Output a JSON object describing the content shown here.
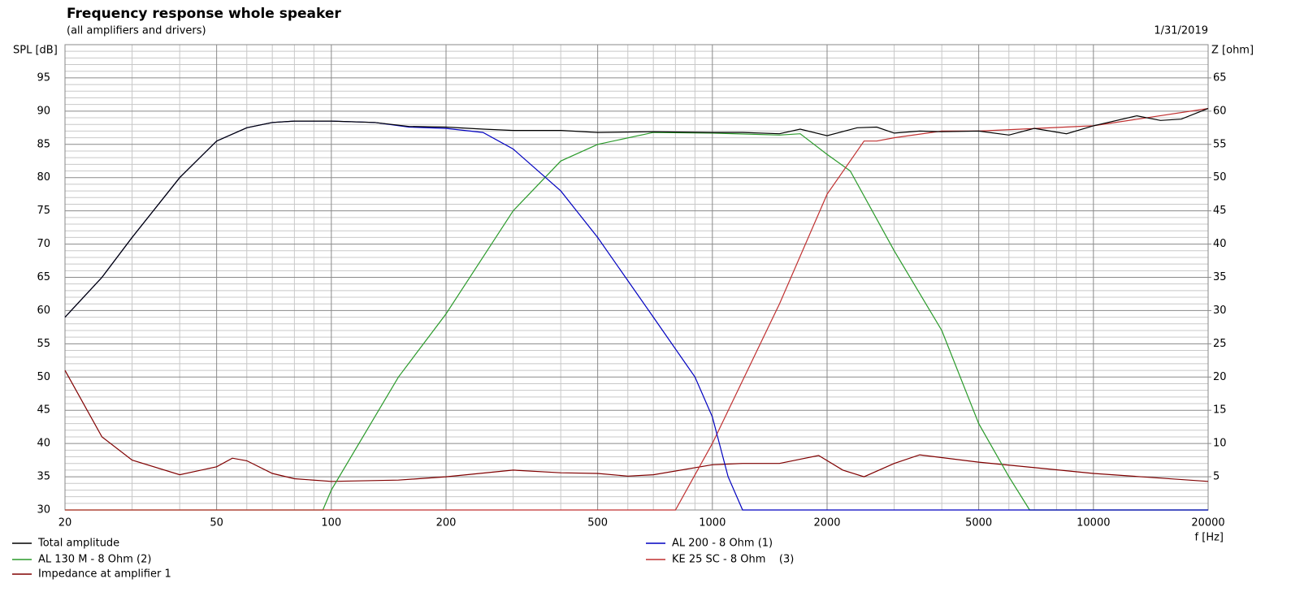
{
  "chart_data": {
    "type": "line",
    "title": "Frequency response whole speaker",
    "subtitle": "(all amplifiers and drivers)",
    "date": "1/31/2019",
    "y_label": "SPL [dB]",
    "y2_label": "Z [ohm]",
    "x_label": "f [Hz]",
    "x_scale": "log",
    "xlim": [
      20,
      20000
    ],
    "xticks": [
      20,
      50,
      100,
      200,
      500,
      1000,
      2000,
      5000,
      10000,
      20000
    ],
    "x_minor_ticks": [
      30,
      40,
      60,
      70,
      80,
      90,
      300,
      400,
      600,
      700,
      800,
      900,
      3000,
      4000,
      6000,
      7000,
      8000,
      9000
    ],
    "ylim": [
      30,
      100
    ],
    "yticks": [
      30,
      35,
      40,
      45,
      50,
      55,
      60,
      65,
      70,
      75,
      80,
      85,
      90,
      95
    ],
    "y_minor_ticks": [
      31,
      32,
      33,
      34,
      36,
      37,
      38,
      39,
      41,
      42,
      43,
      44,
      46,
      47,
      48,
      49,
      51,
      52,
      53,
      54,
      56,
      57,
      58,
      59,
      61,
      62,
      63,
      64,
      66,
      67,
      68,
      69,
      71,
      72,
      73,
      74,
      76,
      77,
      78,
      79,
      81,
      82,
      83,
      84,
      86,
      87,
      88,
      89,
      91,
      92,
      93,
      94,
      96,
      97,
      98,
      99
    ],
    "y2lim": [
      0,
      70
    ],
    "y2ticks": [
      5,
      10,
      15,
      20,
      25,
      30,
      35,
      40,
      45,
      50,
      55,
      60,
      65
    ],
    "grid": true,
    "series": [
      {
        "name": "Total amplitude",
        "color": "#000000",
        "x": [
          20,
          25,
          30,
          40,
          50,
          60,
          70,
          80,
          100,
          130,
          160,
          200,
          250,
          300,
          400,
          500,
          700,
          1000,
          1200,
          1500,
          1700,
          2000,
          2400,
          2700,
          3000,
          3500,
          4000,
          5000,
          6000,
          7000,
          8500,
          10000,
          13000,
          15000,
          17000,
          20000
        ],
        "values": [
          59,
          65,
          71,
          80,
          85.5,
          87.5,
          88.3,
          88.5,
          88.5,
          88.3,
          87.7,
          87.6,
          87.3,
          87.1,
          87.1,
          86.8,
          86.9,
          86.8,
          86.8,
          86.6,
          87.3,
          86.3,
          87.5,
          87.6,
          86.7,
          87.0,
          86.9,
          87.0,
          86.4,
          87.4,
          86.6,
          87.8,
          89.3,
          88.6,
          88.8,
          90.4
        ]
      },
      {
        "name": "AL 200 - 8 Ohm (1)",
        "color": "#0000c0",
        "x": [
          20,
          25,
          30,
          40,
          50,
          60,
          70,
          80,
          100,
          130,
          160,
          200,
          250,
          300,
          400,
          500,
          700,
          900,
          1000,
          1100,
          1200,
          20000
        ],
        "values": [
          59,
          65,
          71,
          80,
          85.5,
          87.5,
          88.3,
          88.5,
          88.5,
          88.3,
          87.6,
          87.4,
          86.8,
          84.3,
          78,
          71,
          59,
          50,
          44,
          35,
          30,
          30
        ]
      },
      {
        "name": "AL 130 M - 8 Ohm (2)",
        "color": "#2a9a2a",
        "x": [
          20,
          95,
          100,
          150,
          200,
          300,
          400,
          500,
          700,
          1000,
          1500,
          1700,
          2000,
          2300,
          3000,
          4000,
          5000,
          6000,
          6800,
          20000
        ],
        "values": [
          30,
          30,
          33,
          50,
          59.5,
          75,
          82.5,
          85,
          86.8,
          86.7,
          86.4,
          86.6,
          83.5,
          81,
          69,
          57,
          43,
          35,
          30,
          30
        ]
      },
      {
        "name": "KE 25 SC - 8 Ohm    (3)",
        "color": "#c03030",
        "x": [
          20,
          800,
          1000,
          1500,
          2000,
          2500,
          2700,
          3000,
          4000,
          5000,
          10000,
          20000
        ],
        "values": [
          30,
          30,
          40,
          61,
          77.5,
          85.5,
          85.5,
          86,
          87,
          87,
          87.8,
          90.4
        ]
      },
      {
        "name": "Impedance at amplifier 1",
        "color": "#800000",
        "axis": "y2",
        "x": [
          20,
          25,
          30,
          40,
          50,
          55,
          60,
          70,
          80,
          100,
          150,
          200,
          300,
          400,
          500,
          600,
          700,
          1000,
          1200,
          1500,
          1900,
          2200,
          2500,
          3000,
          3500,
          5000,
          10000,
          20000
        ],
        "values": [
          21,
          11,
          7.5,
          5.3,
          6.5,
          7.8,
          7.4,
          5.5,
          4.7,
          4.3,
          4.5,
          5,
          6,
          5.6,
          5.5,
          5.1,
          5.3,
          6.8,
          7,
          7,
          8.2,
          6,
          5,
          7,
          8.3,
          7.2,
          5.5,
          4.3
        ]
      }
    ]
  }
}
